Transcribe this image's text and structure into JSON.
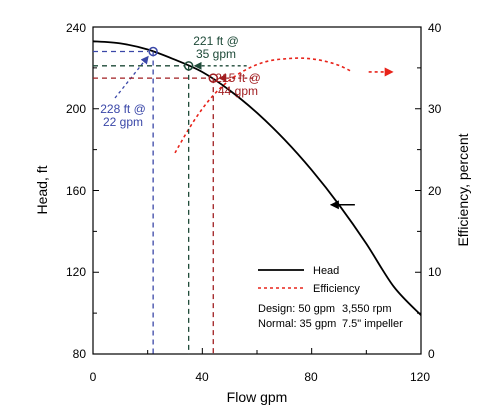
{
  "chart_data": {
    "type": "line",
    "title": "",
    "xlabel": "Flow gpm",
    "ylabel_left": "Head, ft",
    "ylabel_right": "Efficiency, percent",
    "xlim": [
      0,
      120
    ],
    "ylim_left": [
      80,
      240
    ],
    "ylim_right": [
      0,
      40
    ],
    "x_ticks": [
      "0",
      "40",
      "80",
      "120"
    ],
    "y_ticks_left": [
      "80",
      "120",
      "160",
      "200",
      "240"
    ],
    "y_ticks_right": [
      "0",
      "10",
      "20",
      "30",
      "40"
    ],
    "grid": false,
    "legend_position": "bottom-right",
    "series": [
      {
        "name": "Head",
        "axis": "left",
        "style": "solid",
        "color": "#000000",
        "x": [
          0,
          10,
          20,
          30,
          40,
          50,
          60,
          70,
          80,
          90,
          100,
          110,
          120
        ],
        "y": [
          233,
          232,
          229,
          224,
          218,
          209,
          198,
          185,
          170,
          153,
          134,
          113,
          99
        ]
      },
      {
        "name": "Efficiency",
        "axis": "right",
        "style": "dashed",
        "color": "#e8231a",
        "x": [
          30,
          35,
          40,
          45,
          50,
          55,
          60,
          65,
          70,
          75,
          80,
          85,
          90,
          95
        ],
        "y": [
          24.6,
          27.5,
          30.0,
          32.0,
          33.5,
          34.6,
          35.4,
          35.9,
          36.1,
          36.2,
          36.1,
          35.8,
          35.3,
          34.5
        ]
      }
    ],
    "operating_points": [
      {
        "label_lines": [
          "228 ft @",
          "22 gpm"
        ],
        "x": 22,
        "y": 228,
        "color": "#3a47a8"
      },
      {
        "label_lines": [
          "221 ft @",
          "35 gpm"
        ],
        "x": 35,
        "y": 221,
        "color": "#1e4a38"
      },
      {
        "label_lines": [
          "215 ft @",
          "44 gpm"
        ],
        "x": 44,
        "y": 215,
        "color": "#a11d20"
      }
    ],
    "notes": [
      {
        "col1": "Design: 50 gpm",
        "col2": "3,550 rpm"
      },
      {
        "col1": "Normal: 35 gpm",
        "col2": "7.5\" impeller"
      }
    ]
  }
}
